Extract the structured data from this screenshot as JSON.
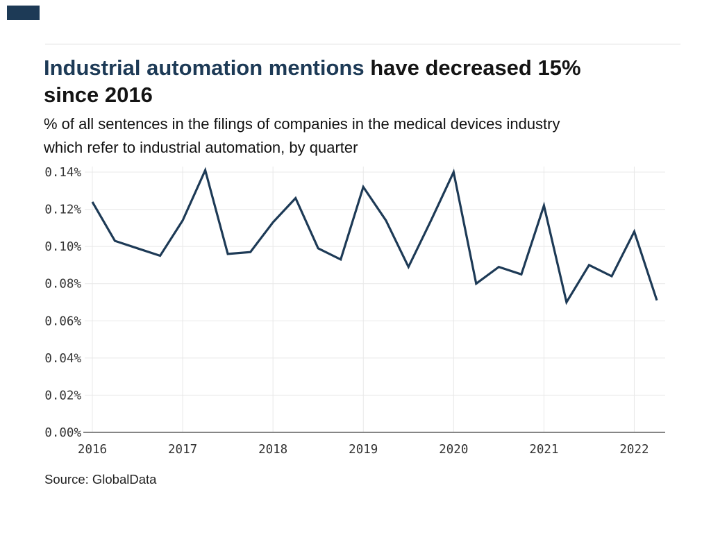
{
  "branding": {
    "block_color": "#1d3a56"
  },
  "header": {
    "title_highlight": "Industrial automation mentions",
    "title_rest": " have decreased 15%",
    "title_line2": "since 2016",
    "subtitle_line1": "% of all sentences in the filings of companies in the medical devices industry",
    "subtitle_line2": "which refer to industrial automation, by quarter",
    "highlight_color": "#1d3a56"
  },
  "footer": {
    "source": "Source: GlobalData"
  },
  "chart_data": {
    "type": "line",
    "title": "Industrial automation mentions have decreased 15% since 2016",
    "subtitle": "% of all sentences in the filings of companies in the medical devices industry which refer to industrial automation, by quarter",
    "source": "Source: GlobalData",
    "xlabel": "",
    "ylabel": "",
    "grid": true,
    "legend": false,
    "line_color": "#1d3a56",
    "grid_color": "#e8e8e8",
    "axis_color": "#868686",
    "ylim": [
      0,
      0.14
    ],
    "y_ticks": [
      {
        "value": 0.0,
        "label": "0.00%"
      },
      {
        "value": 0.02,
        "label": "0.02%"
      },
      {
        "value": 0.04,
        "label": "0.04%"
      },
      {
        "value": 0.06,
        "label": "0.06%"
      },
      {
        "value": 0.08,
        "label": "0.08%"
      },
      {
        "value": 0.1,
        "label": "0.10%"
      },
      {
        "value": 0.12,
        "label": "0.12%"
      },
      {
        "value": 0.14,
        "label": "0.14%"
      }
    ],
    "x_ticks": [
      {
        "index": 0,
        "label": "2016"
      },
      {
        "index": 4,
        "label": "2017"
      },
      {
        "index": 8,
        "label": "2018"
      },
      {
        "index": 12,
        "label": "2019"
      },
      {
        "index": 16,
        "label": "2020"
      },
      {
        "index": 20,
        "label": "2021"
      },
      {
        "index": 24,
        "label": "2022"
      }
    ],
    "x_quarters": [
      "2016 Q1",
      "2016 Q2",
      "2016 Q3",
      "2016 Q4",
      "2017 Q1",
      "2017 Q2",
      "2017 Q3",
      "2017 Q4",
      "2018 Q1",
      "2018 Q2",
      "2018 Q3",
      "2018 Q4",
      "2019 Q1",
      "2019 Q2",
      "2019 Q3",
      "2019 Q4",
      "2020 Q1",
      "2020 Q2",
      "2020 Q3",
      "2020 Q4",
      "2021 Q1",
      "2021 Q2",
      "2021 Q3",
      "2021 Q4",
      "2022 Q1",
      "2022 Q2"
    ],
    "values_pct": [
      0.124,
      0.103,
      0.099,
      0.095,
      0.114,
      0.141,
      0.096,
      0.097,
      0.113,
      0.126,
      0.099,
      0.093,
      0.132,
      0.114,
      0.089,
      0.114,
      0.14,
      0.08,
      0.089,
      0.085,
      0.122,
      0.07,
      0.09,
      0.084,
      0.108,
      0.071
    ]
  }
}
